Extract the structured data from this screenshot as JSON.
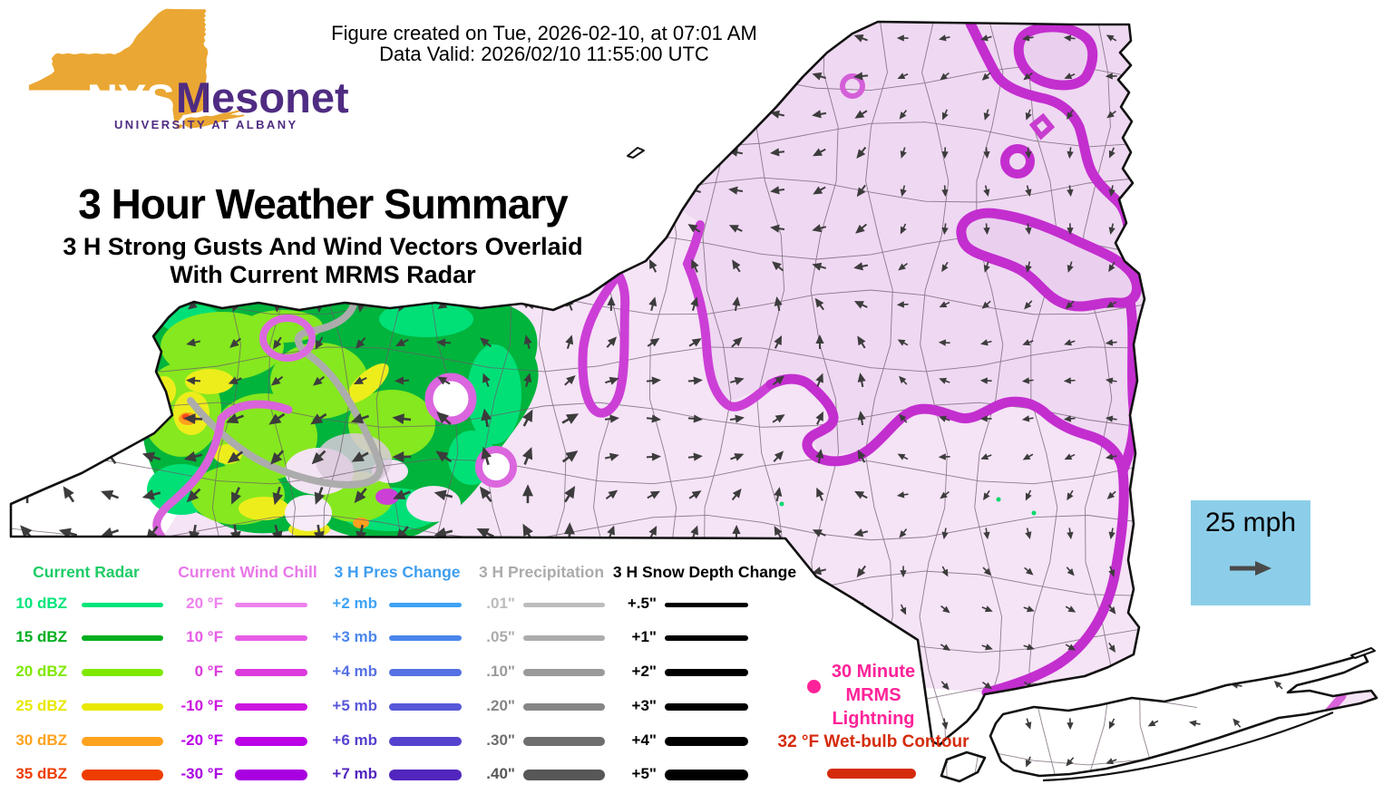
{
  "header": {
    "created_line": "Figure created on Tue, 2026-02-10, at 07:01 AM",
    "valid_line": "Data Valid: 2026/02/10 11:55:00 UTC",
    "title": "3 Hour Weather Summary",
    "subtitle_line1": "3 H Strong Gusts And Wind Vectors Overlaid",
    "subtitle_line2": "With Current MRMS Radar"
  },
  "logo": {
    "nys": "NYS",
    "mesonet": "Mesonet",
    "university": "UNIVERSITY AT ALBANY",
    "orange": "#EBA733",
    "purple": "#4F2C82"
  },
  "map": {
    "base_fill": "#F5E3F6",
    "shade_fill": "#EFD8F2",
    "loop_fill": "#EAD0EE",
    "contour_primary": "#C32ECF",
    "contour_light": "#D863DB",
    "gray_contour": "#ACACAC",
    "outline": "#111111"
  },
  "wind_reference": {
    "label": "25 mph",
    "bg_color": "#8CCEE9",
    "arrow_color": "#4A4A4A"
  },
  "legend": {
    "columns": [
      {
        "id": "radar",
        "title": "Current Radar",
        "title_color": "#1ECC66",
        "rows": [
          {
            "label": "10 dBZ",
            "color": "#00E57A"
          },
          {
            "label": "15 dBZ",
            "color": "#00AF1E"
          },
          {
            "label": "20 dBZ",
            "color": "#7FE800"
          },
          {
            "label": "25 dBZ",
            "color": "#E8E800"
          },
          {
            "label": "30 dBZ",
            "color": "#FFA21E"
          },
          {
            "label": "35 dBZ",
            "color": "#EE3D00"
          }
        ]
      },
      {
        "id": "wind-chill",
        "title": "Current Wind Chill",
        "title_color": "#E878E8",
        "rows": [
          {
            "label": "20 °F",
            "color": "#EE82EE"
          },
          {
            "label": "10 °F",
            "color": "#E65CE6"
          },
          {
            "label": "0 °F",
            "color": "#DC3ADC"
          },
          {
            "label": "-10 °F",
            "color": "#CC14E0"
          },
          {
            "label": "-20 °F",
            "color": "#BB00E8"
          },
          {
            "label": "-30 °F",
            "color": "#A800E0"
          }
        ]
      },
      {
        "id": "pres-change",
        "title": "3 H Pres Change",
        "title_color": "#3F9EF0",
        "rows": [
          {
            "label": "+2 mb",
            "color": "#3FA3F5"
          },
          {
            "label": "+3 mb",
            "color": "#4A86EC"
          },
          {
            "label": "+4 mb",
            "color": "#5570E2"
          },
          {
            "label": "+5 mb",
            "color": "#5858D8"
          },
          {
            "label": "+6 mb",
            "color": "#5442CE"
          },
          {
            "label": "+7 mb",
            "color": "#5226BE"
          }
        ]
      },
      {
        "id": "precip",
        "title": "3 H Precipitation",
        "title_color": "#ABABAB",
        "rows": [
          {
            "label": ".01\"",
            "color": "#BCBCBC"
          },
          {
            "label": ".05\"",
            "color": "#ACACAC"
          },
          {
            "label": ".10\"",
            "color": "#9A9A9A"
          },
          {
            "label": ".20\"",
            "color": "#868686"
          },
          {
            "label": ".30\"",
            "color": "#6E6E6E"
          },
          {
            "label": ".40\"",
            "color": "#575757"
          }
        ]
      },
      {
        "id": "snow-depth",
        "title": "3 H Snow Depth Change",
        "title_color": "#000000",
        "rows": [
          {
            "label": "+.5\"",
            "color": "#000000"
          },
          {
            "label": "+1\"",
            "color": "#000000"
          },
          {
            "label": "+2\"",
            "color": "#000000"
          },
          {
            "label": "+3\"",
            "color": "#000000"
          },
          {
            "label": "+4\"",
            "color": "#000000"
          },
          {
            "label": "+5\"",
            "color": "#000000"
          }
        ]
      }
    ]
  },
  "lightning": {
    "line1": "30 Minute",
    "line2": "MRMS",
    "line3": "Lightning",
    "color": "#FF2299"
  },
  "wetbulb": {
    "label": "32 °F Wet-bulb Contour",
    "color": "#D52B0D"
  }
}
